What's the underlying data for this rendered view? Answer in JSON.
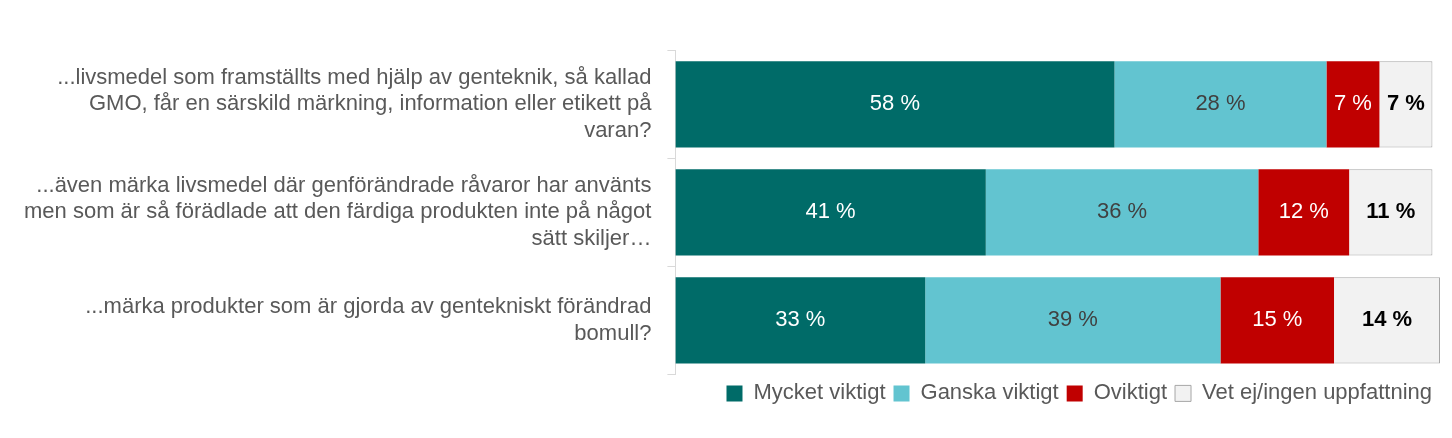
{
  "chart_data": {
    "type": "bar",
    "orientation": "horizontal",
    "stacked": true,
    "categories": [
      "...livsmedel som framställts med hjälp av genteknik, så kallad GMO, får en särskild märkning, information eller etikett på varan?",
      "...även märka livsmedel där genförändrade råvaror har använts men som är så förädlade att den färdiga produkten inte på något sätt skiljer…",
      "...märka produkter som är gjorda av gentekniskt förändrad bomull?"
    ],
    "series": [
      {
        "name": "Mycket viktigt",
        "color": "#006b68",
        "values": [
          58,
          41,
          33
        ],
        "value_labels": [
          "58 %",
          "41 %",
          "33 %"
        ]
      },
      {
        "name": "Ganska viktigt",
        "color": "#62c4d0",
        "values": [
          28,
          36,
          39
        ],
        "value_labels": [
          "28 %",
          "36 %",
          "39 %"
        ]
      },
      {
        "name": "Oviktigt",
        "color": "#c00000",
        "values": [
          7,
          12,
          15
        ],
        "value_labels": [
          "7 %",
          "12 %",
          "15 %"
        ]
      },
      {
        "name": "Vet ej/ingen uppfattning",
        "color": "#f2f2f2",
        "values": [
          7,
          11,
          14
        ],
        "value_labels": [
          "7 %",
          "11 %",
          "14 %"
        ]
      }
    ],
    "xlim": [
      0,
      101
    ],
    "tick_labels": "y",
    "grid": false,
    "legend": "bottom right"
  }
}
